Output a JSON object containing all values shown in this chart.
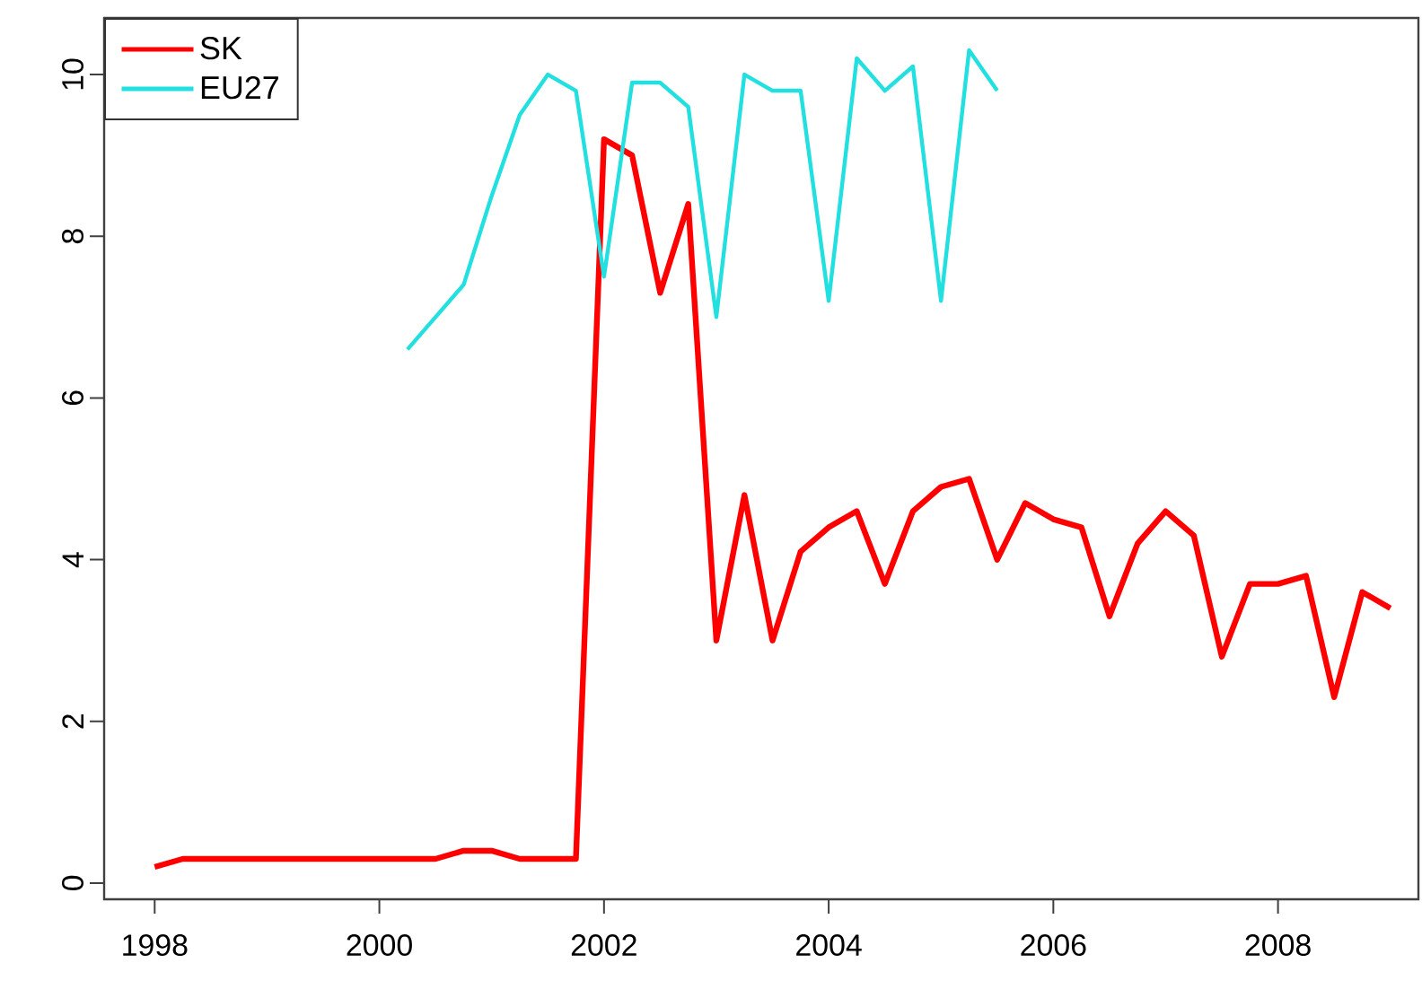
{
  "chart_data": {
    "type": "line",
    "legend": "top left",
    "xlim": [
      1997.55,
      2009.25
    ],
    "ylim": [
      -0.2,
      10.7
    ],
    "xticks": [
      1998,
      2000,
      2002,
      2004,
      2006,
      2008
    ],
    "yticks": [
      0,
      2,
      4,
      6,
      8,
      10
    ],
    "series": [
      {
        "name": "SK",
        "color": "#ff0000",
        "x": [
          1998.0,
          1998.25,
          1998.5,
          1998.75,
          1999.0,
          1999.25,
          1999.5,
          1999.75,
          2000.0,
          2000.25,
          2000.5,
          2000.75,
          2001.0,
          2001.25,
          2001.5,
          2001.75,
          2002.0,
          2002.25,
          2002.5,
          2002.75,
          2003.0,
          2003.25,
          2003.5,
          2003.75,
          2004.0,
          2004.25,
          2004.5,
          2004.75,
          2005.0,
          2005.25,
          2005.5,
          2005.75,
          2006.0,
          2006.25,
          2006.5,
          2006.75,
          2007.0,
          2007.25,
          2007.5,
          2007.75,
          2008.0,
          2008.25,
          2008.5,
          2008.75,
          2009.0
        ],
        "values": [
          0.2,
          0.3,
          0.3,
          0.3,
          0.3,
          0.3,
          0.3,
          0.3,
          0.3,
          0.3,
          0.3,
          0.4,
          0.4,
          0.3,
          0.3,
          0.3,
          9.2,
          9.0,
          7.3,
          8.4,
          3.0,
          4.8,
          3.0,
          4.1,
          4.4,
          4.6,
          3.7,
          4.6,
          4.9,
          5.0,
          4.0,
          4.7,
          4.5,
          4.4,
          3.3,
          4.2,
          4.6,
          4.3,
          2.8,
          3.7,
          3.7,
          3.8,
          2.3,
          3.6,
          3.4
        ]
      },
      {
        "name": "EU27",
        "color": "#22e0e0",
        "x": [
          2000.25,
          2000.5,
          2000.75,
          2001.0,
          2001.25,
          2001.5,
          2001.75,
          2002.0,
          2002.25,
          2002.5,
          2002.75,
          2003.0,
          2003.25,
          2003.5,
          2003.75,
          2004.0,
          2004.25,
          2004.5,
          2004.75,
          2005.0,
          2005.25,
          2005.5
        ],
        "values": [
          6.6,
          7.0,
          7.4,
          8.5,
          9.5,
          10.0,
          9.8,
          7.5,
          9.9,
          9.9,
          9.6,
          7.0,
          10.0,
          9.8,
          9.8,
          7.2,
          10.2,
          9.8,
          10.1,
          7.2,
          10.3,
          9.8
        ]
      }
    ]
  }
}
